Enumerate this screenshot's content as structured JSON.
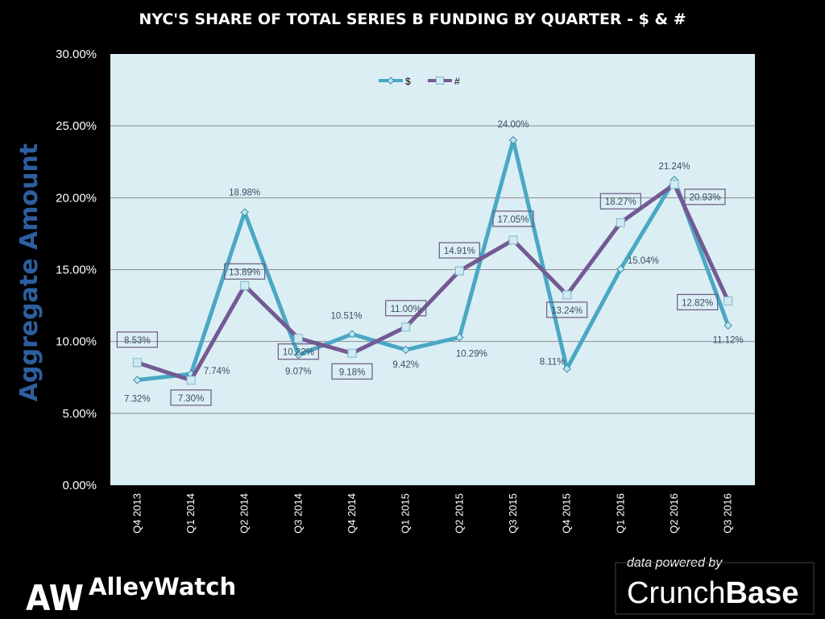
{
  "chart_data": {
    "type": "line",
    "title": "NYC'S SHARE OF TOTAL SERIES B FUNDING BY QUARTER - $ & #",
    "ylabel": "Aggregate Amount",
    "xlabel": "",
    "ylim": [
      0,
      30
    ],
    "yticks": [
      {
        "value": 0,
        "label": "0.00%"
      },
      {
        "value": 5,
        "label": "5.00%"
      },
      {
        "value": 10,
        "label": "10.00%"
      },
      {
        "value": 15,
        "label": "15.00%"
      },
      {
        "value": 20,
        "label": "20.00%"
      },
      {
        "value": 25,
        "label": "25.00%"
      },
      {
        "value": 30,
        "label": "30.00%"
      }
    ],
    "grid": true,
    "legend_position": "top-center",
    "categories": [
      "Q4 2013",
      "Q1 2014",
      "Q2 2014",
      "Q3 2014",
      "Q4 2014",
      "Q1 2015",
      "Q2 2015",
      "Q3 2015",
      "Q4 2015",
      "Q1 2016",
      "Q2 2016",
      "Q3 2016"
    ],
    "series": [
      {
        "name": "$",
        "color": "#4aa8c4",
        "marker": "diamond",
        "values": [
          7.32,
          7.74,
          18.98,
          9.07,
          10.51,
          9.42,
          10.29,
          24.0,
          8.11,
          15.04,
          21.24,
          11.12
        ],
        "labels": [
          "7.32%",
          "7.74%",
          "18.98%",
          "9.07%",
          "10.51%",
          "9.42%",
          "10.29%",
          "24.00%",
          "8.11%",
          "15.04%",
          "21.24%",
          "11.12%"
        ],
        "label_boxed": false
      },
      {
        "name": "#",
        "color": "#735a93",
        "marker": "square",
        "values": [
          8.53,
          7.3,
          13.89,
          10.22,
          9.18,
          11.0,
          14.91,
          17.05,
          13.24,
          18.27,
          20.93,
          12.82
        ],
        "labels": [
          "8.53%",
          "7.30%",
          "13.89%",
          "10.22%",
          "9.18%",
          "11.00%",
          "14.91%",
          "17.05%",
          "13.24%",
          "18.27%",
          "20.93%",
          "12.82%"
        ],
        "label_boxed": true
      }
    ],
    "colors": {
      "plot_background": "#dbeef4",
      "gridline": "#8c8c8c",
      "ylabel": "#2d5fa0",
      "label_text": "#3a4e62"
    }
  },
  "branding": {
    "logo_mark": "AW",
    "logo_text": "AlleyWatch",
    "powered_by": "data powered by",
    "crunchbase_light": "Crunch",
    "crunchbase_bold": "Base"
  }
}
